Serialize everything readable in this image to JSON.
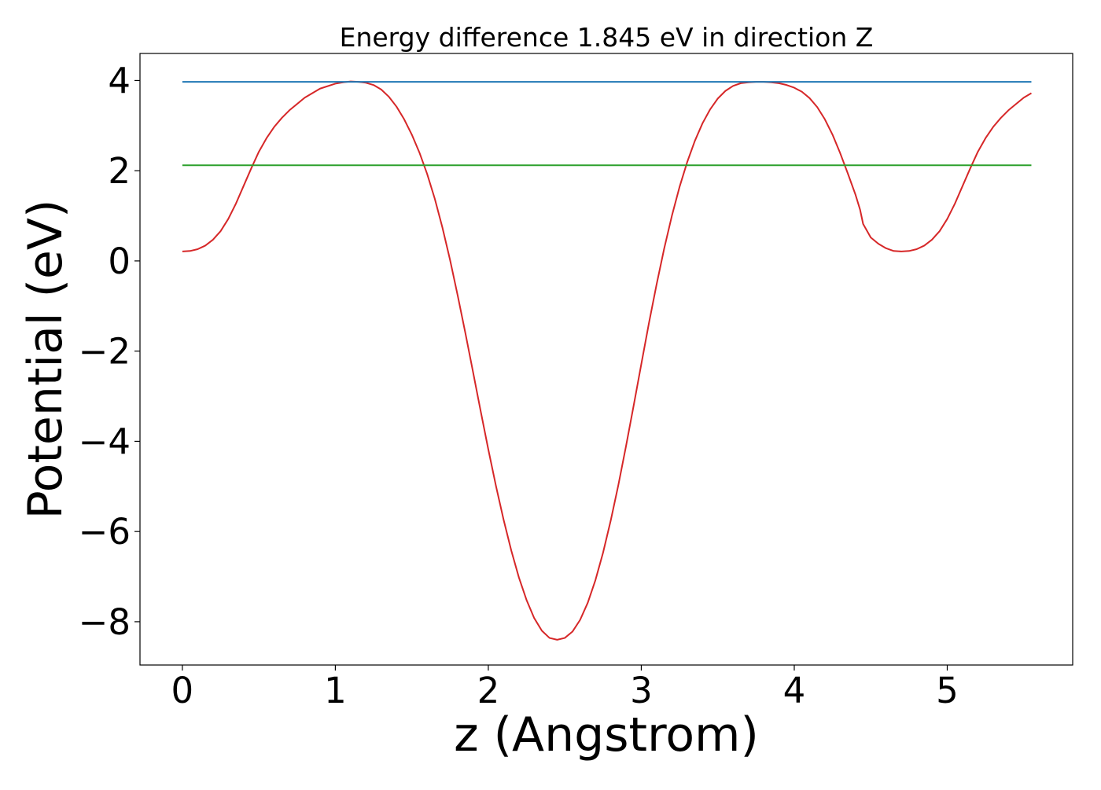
{
  "chart_data": {
    "type": "line",
    "title": "Energy difference 1.845 eV in direction Z",
    "xlabel": "z (Angstrom)",
    "ylabel": "Potential (eV)",
    "xlim": [
      -0.277,
      5.82
    ],
    "ylim": [
      -8.96,
      4.6
    ],
    "xticks": [
      0,
      1,
      2,
      3,
      4,
      5
    ],
    "yticks": [
      -8,
      -6,
      -4,
      -2,
      0,
      2,
      4
    ],
    "xtick_labels": [
      "0",
      "1",
      "2",
      "3",
      "4",
      "5"
    ],
    "ytick_labels": [
      "−8",
      "−6",
      "−4",
      "−2",
      "0",
      "2",
      "4"
    ],
    "grid": false,
    "legend": "none",
    "series": [
      {
        "color": "#d62728",
        "x": [
          0.0,
          0.05,
          0.1,
          0.15,
          0.2,
          0.25,
          0.3,
          0.35,
          0.4,
          0.45,
          0.5,
          0.55,
          0.6,
          0.65,
          0.7,
          0.8,
          0.9,
          1.0,
          1.05,
          1.1,
          1.15,
          1.18,
          1.2,
          1.25,
          1.3,
          1.35,
          1.4,
          1.45,
          1.5,
          1.55,
          1.6,
          1.65,
          1.7,
          1.75,
          1.8,
          1.85,
          1.9,
          1.95,
          2.0,
          2.05,
          2.1,
          2.15,
          2.2,
          2.25,
          2.3,
          2.35,
          2.4,
          2.45,
          2.5,
          2.55,
          2.6,
          2.65,
          2.7,
          2.75,
          2.8,
          2.85,
          2.9,
          2.95,
          3.0,
          3.05,
          3.1,
          3.15,
          3.2,
          3.25,
          3.3,
          3.35,
          3.4,
          3.45,
          3.5,
          3.55,
          3.6,
          3.65,
          3.7,
          3.75,
          3.8,
          3.85,
          3.9,
          3.95,
          4.0,
          4.05,
          4.1,
          4.15,
          4.2,
          4.25,
          4.3,
          4.35,
          4.4,
          4.43,
          4.45,
          4.5,
          4.55,
          4.6,
          4.65,
          4.7,
          4.75,
          4.8,
          4.85,
          4.9,
          4.95,
          5.0,
          5.05,
          5.1,
          5.15,
          5.2,
          5.25,
          5.3,
          5.35,
          5.4,
          5.45,
          5.5,
          5.55
        ],
        "y": [
          0.21,
          0.22,
          0.26,
          0.34,
          0.47,
          0.66,
          0.93,
          1.27,
          1.66,
          2.05,
          2.42,
          2.72,
          2.97,
          3.17,
          3.34,
          3.62,
          3.82,
          3.93,
          3.96,
          3.98,
          3.97,
          3.96,
          3.95,
          3.9,
          3.8,
          3.64,
          3.42,
          3.14,
          2.8,
          2.4,
          1.93,
          1.38,
          0.74,
          0.02,
          -0.77,
          -1.6,
          -2.46,
          -3.33,
          -4.18,
          -4.99,
          -5.74,
          -6.42,
          -7.02,
          -7.52,
          -7.92,
          -8.2,
          -8.36,
          -8.4,
          -8.36,
          -8.22,
          -7.96,
          -7.58,
          -7.08,
          -6.47,
          -5.76,
          -4.97,
          -4.11,
          -3.21,
          -2.29,
          -1.38,
          -0.52,
          0.28,
          1.0,
          1.64,
          2.19,
          2.66,
          3.05,
          3.36,
          3.6,
          3.77,
          3.88,
          3.94,
          3.96,
          3.97,
          3.97,
          3.96,
          3.94,
          3.9,
          3.84,
          3.75,
          3.61,
          3.41,
          3.14,
          2.8,
          2.39,
          1.94,
          1.47,
          1.14,
          0.82,
          0.52,
          0.38,
          0.28,
          0.22,
          0.21,
          0.22,
          0.26,
          0.34,
          0.47,
          0.66,
          0.93,
          1.27,
          1.66,
          2.05,
          2.42,
          2.72,
          2.97,
          3.17,
          3.34,
          3.48,
          3.62,
          3.72
        ]
      },
      {
        "color": "#1f77b4",
        "x": [
          0.0,
          5.55
        ],
        "y": [
          3.97,
          3.97
        ]
      },
      {
        "color": "#2ca02c",
        "x": [
          0.0,
          5.55
        ],
        "y": [
          2.12,
          2.12
        ]
      }
    ]
  }
}
